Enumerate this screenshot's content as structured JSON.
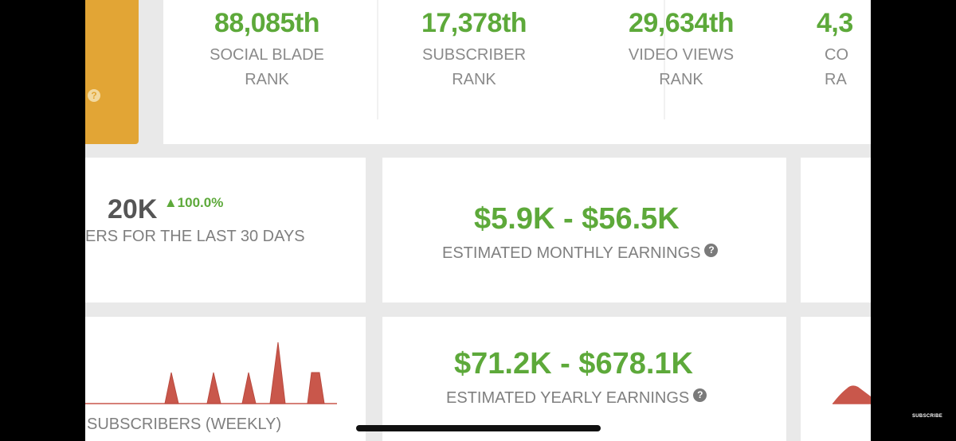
{
  "ranks": [
    {
      "value": "88,085th",
      "label_line1": "SOCIAL BLADE",
      "label_line2": "RANK"
    },
    {
      "value": "17,378th",
      "label_line1": "SUBSCRIBER",
      "label_line2": "RANK"
    },
    {
      "value": "29,634th",
      "label_line1": "VIDEO VIEWS",
      "label_line2": "RANK"
    },
    {
      "value": "4,3",
      "label_line1": "CO",
      "label_line2": "RA"
    }
  ],
  "orange_help": "?",
  "subscribers_30d": {
    "value": "20K",
    "change": "▲100.0%",
    "label": "ERS FOR THE LAST 30 DAYS"
  },
  "monthly_earnings": {
    "value": "$5.9K  -  $56.5K",
    "label": "ESTIMATED MONTHLY EARNINGS",
    "help": "?"
  },
  "yearly_earnings": {
    "value": "$71.2K  -  $678.1K",
    "label": "ESTIMATED YEARLY EARNINGS",
    "help": "?"
  },
  "weekly_chart": {
    "label": "SUBSCRIBERS (WEEKLY)",
    "color": "#c9574b"
  },
  "watermark": "SUBSCRIBE",
  "colors": {
    "green": "#5da93a",
    "orange": "#e2a535",
    "gray_text": "#7f7f7f",
    "chart_red": "#c9574b"
  }
}
